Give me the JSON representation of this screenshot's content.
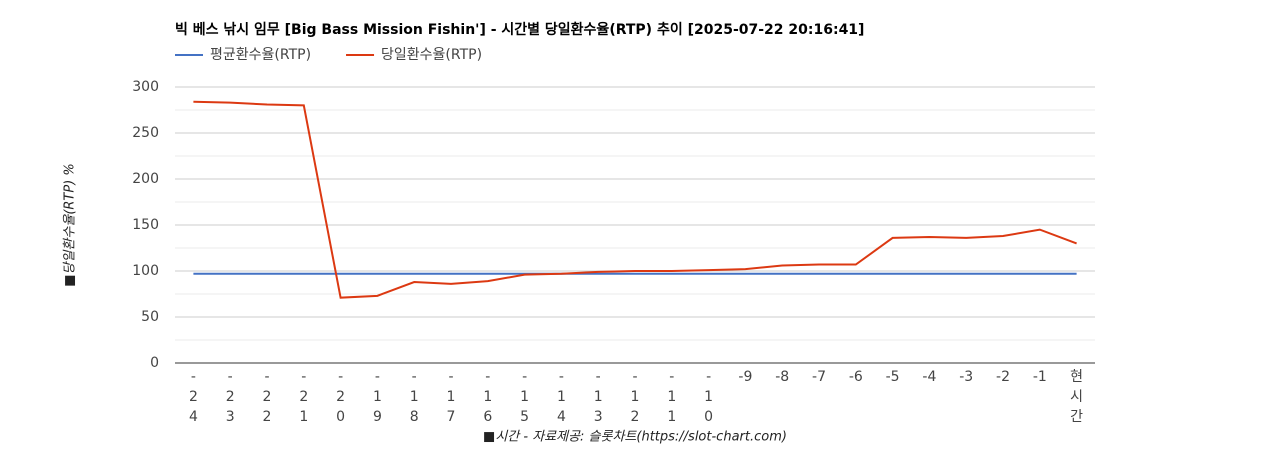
{
  "chart_data": {
    "type": "line",
    "title": "빅 베스 낚시 임무 [Big Bass Mission Fishin'] - 시간별 당일환수율(RTP) 추이 [2025-07-22 20:16:41]",
    "x_label": "■시간 - 자료제공: 슬롯차트(https://slot-chart.com)",
    "y_label": "■당일환수율(RTP) %",
    "categories": [
      "-24",
      "-23",
      "-22",
      "-21",
      "-20",
      "-19",
      "-18",
      "-17",
      "-16",
      "-15",
      "-14",
      "-13",
      "-12",
      "-11",
      "-10",
      "-9",
      "-8",
      "-7",
      "-6",
      "-5",
      "-4",
      "-3",
      "-2",
      "-1",
      "현시간"
    ],
    "series": [
      {
        "name": "평균환수율(RTP)",
        "color": "#4472c4",
        "values": [
          97,
          97,
          97,
          97,
          97,
          97,
          97,
          97,
          97,
          97,
          97,
          97,
          97,
          97,
          97,
          97,
          97,
          97,
          97,
          97,
          97,
          97,
          97,
          97,
          97
        ]
      },
      {
        "name": "당일환수율(RTP)",
        "color": "#dc3912",
        "values": [
          284,
          283,
          281,
          280,
          71,
          73,
          88,
          86,
          89,
          96,
          97,
          99,
          100,
          100,
          101,
          102,
          106,
          107,
          107,
          136,
          137,
          136,
          138,
          145,
          130
        ]
      }
    ],
    "ylim": [
      0,
      300
    ],
    "yticks": [
      0,
      50,
      100,
      150,
      200,
      250,
      300
    ],
    "grid": true,
    "legend": "top-left"
  }
}
